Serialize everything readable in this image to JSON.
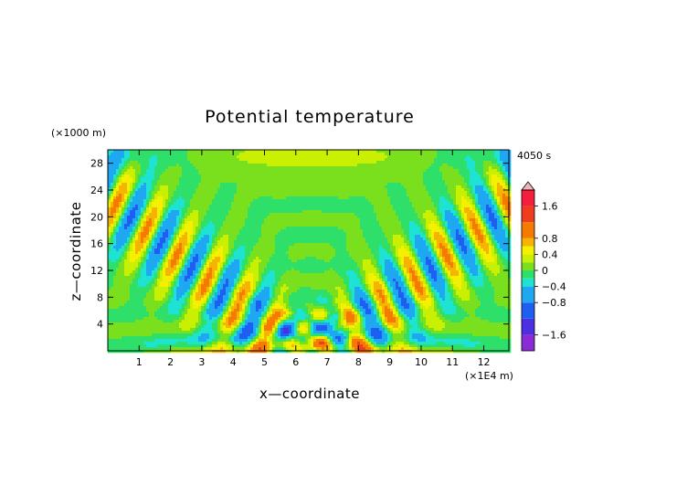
{
  "chart_data": {
    "type": "heatmap",
    "title": "Potential temperature",
    "xlabel": "x—coordinate",
    "ylabel": "z—coordinate",
    "x_unit": "(×1E4 m)",
    "y_unit": "(×1000 m)",
    "time_label": "4050 s",
    "xlim": [
      0,
      12.8
    ],
    "ylim": [
      0,
      30
    ],
    "x_ticks": [
      1,
      2,
      3,
      4,
      5,
      6,
      7,
      8,
      9,
      10,
      11,
      12
    ],
    "y_ticks": [
      4,
      8,
      12,
      16,
      20,
      24,
      28
    ],
    "colorbar": {
      "min": -2.0,
      "max": 2.0,
      "tick_values": [
        1.6,
        0.8,
        0.4,
        0,
        -0.4,
        -0.8,
        -1.6
      ],
      "tick_labels": [
        "1.6",
        "0.8",
        "0.4",
        "0",
        "−0.4",
        "−0.8",
        "−1.6"
      ],
      "levels": [
        {
          "from": -2.0,
          "to": -1.6,
          "color": "#8a2bd6"
        },
        {
          "from": -1.6,
          "to": -1.2,
          "color": "#4b2fe0"
        },
        {
          "from": -1.2,
          "to": -0.8,
          "color": "#1f5ef2"
        },
        {
          "from": -0.8,
          "to": -0.4,
          "color": "#1fa8f2"
        },
        {
          "from": -0.4,
          "to": -0.2,
          "color": "#1ee3d2"
        },
        {
          "from": -0.2,
          "to": 0.0,
          "color": "#2ee06a"
        },
        {
          "from": 0.0,
          "to": 0.2,
          "color": "#7ae01e"
        },
        {
          "from": 0.2,
          "to": 0.4,
          "color": "#c8f000"
        },
        {
          "from": 0.4,
          "to": 0.6,
          "color": "#f5f000"
        },
        {
          "from": 0.6,
          "to": 0.8,
          "color": "#f5b400"
        },
        {
          "from": 0.8,
          "to": 1.2,
          "color": "#f57a00"
        },
        {
          "from": 1.2,
          "to": 1.6,
          "color": "#f03c1e"
        },
        {
          "from": 1.6,
          "to": 2.0,
          "color": "#f51e3c"
        }
      ],
      "over_color": "#f0b4b4"
    },
    "field_description": "Gravity wave pattern of potential temperature perturbation: symmetric tilted bands radiating upward from centre near x=6.5 at the surface, with alternating positive and negative anomalies.",
    "grid": false
  }
}
